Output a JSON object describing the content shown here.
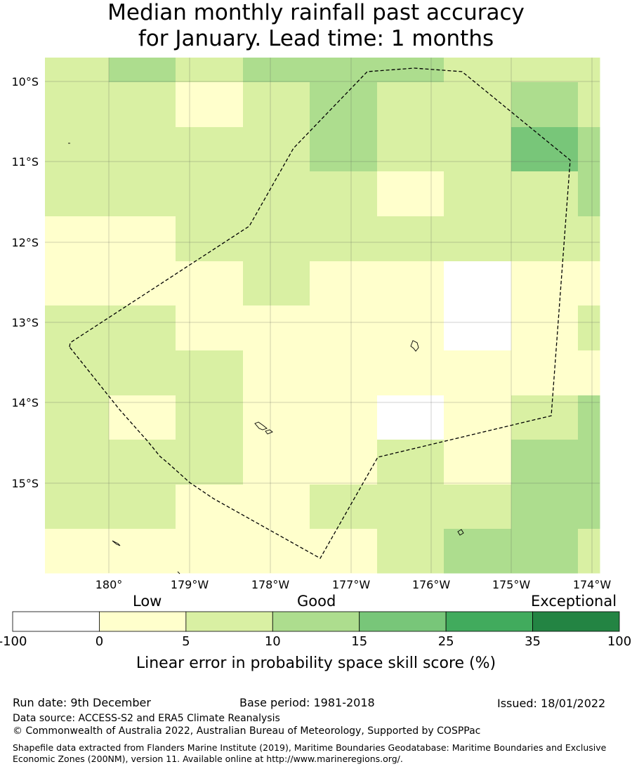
{
  "title": {
    "line1": "Median monthly rainfall past accuracy",
    "line2": "for January. Lead time: 1 months"
  },
  "map": {
    "lat_labels": [
      "10°S",
      "11°S",
      "12°S",
      "13°S",
      "14°S",
      "15°S"
    ],
    "lon_labels": [
      "180°",
      "179°W",
      "178°W",
      "177°W",
      "176°W",
      "175°W",
      "174°W"
    ],
    "colors": {
      "c0": "#ffffff",
      "c1": "#ffffcc",
      "c2": "#d9f0a3",
      "c3": "#addd8e",
      "c4": "#78c679",
      "c5": "#41ab5d",
      "c6": "#238443"
    },
    "grid_category_rows": [
      [
        2,
        3,
        2,
        3,
        3,
        3,
        2,
        2,
        2
      ],
      [
        2,
        2,
        1,
        2,
        3,
        2,
        2,
        3,
        2
      ],
      [
        2,
        2,
        2,
        2,
        3,
        2,
        2,
        4,
        3
      ],
      [
        2,
        2,
        2,
        2,
        2,
        1,
        2,
        2,
        3
      ],
      [
        1,
        1,
        2,
        2,
        2,
        2,
        2,
        2,
        2
      ],
      [
        1,
        1,
        1,
        2,
        1,
        1,
        0,
        1,
        1
      ],
      [
        2,
        2,
        1,
        1,
        1,
        1,
        0,
        1,
        2
      ],
      [
        2,
        2,
        2,
        1,
        1,
        1,
        1,
        1,
        1
      ],
      [
        2,
        1,
        2,
        1,
        1,
        0,
        1,
        2,
        3
      ],
      [
        2,
        2,
        2,
        1,
        1,
        2,
        1,
        3,
        3
      ],
      [
        2,
        2,
        1,
        1,
        2,
        2,
        2,
        3,
        3
      ],
      [
        1,
        1,
        1,
        1,
        1,
        2,
        3,
        3,
        2
      ]
    ]
  },
  "colorbar": {
    "category_labels": [
      "Low",
      "Good",
      "Exceptional"
    ],
    "ticks": [
      "-100",
      "0",
      "5",
      "10",
      "15",
      "25",
      "35",
      "100"
    ],
    "title": "Linear error in probability space skill score (%)"
  },
  "footer": {
    "run_date": "Run date: 9th December",
    "base_period": "Base period: 1981-2018",
    "issued": "Issued: 18/01/2022",
    "data_source": "Data source: ACCESS-S2 and ERA5 Climate Reanalysis",
    "copyright": "© Commonwealth of Australia 2022, Australian Bureau of Meteorology, Supported by COSPPac",
    "shapefile": "Shapefile data extracted from Flanders Marine Institute (2019), Maritime Boundaries Geodatabase: Maritime Boundaries and Exclusive Economic Zones (200NM), version 11. Available online at http://www.marineregions.org/."
  }
}
